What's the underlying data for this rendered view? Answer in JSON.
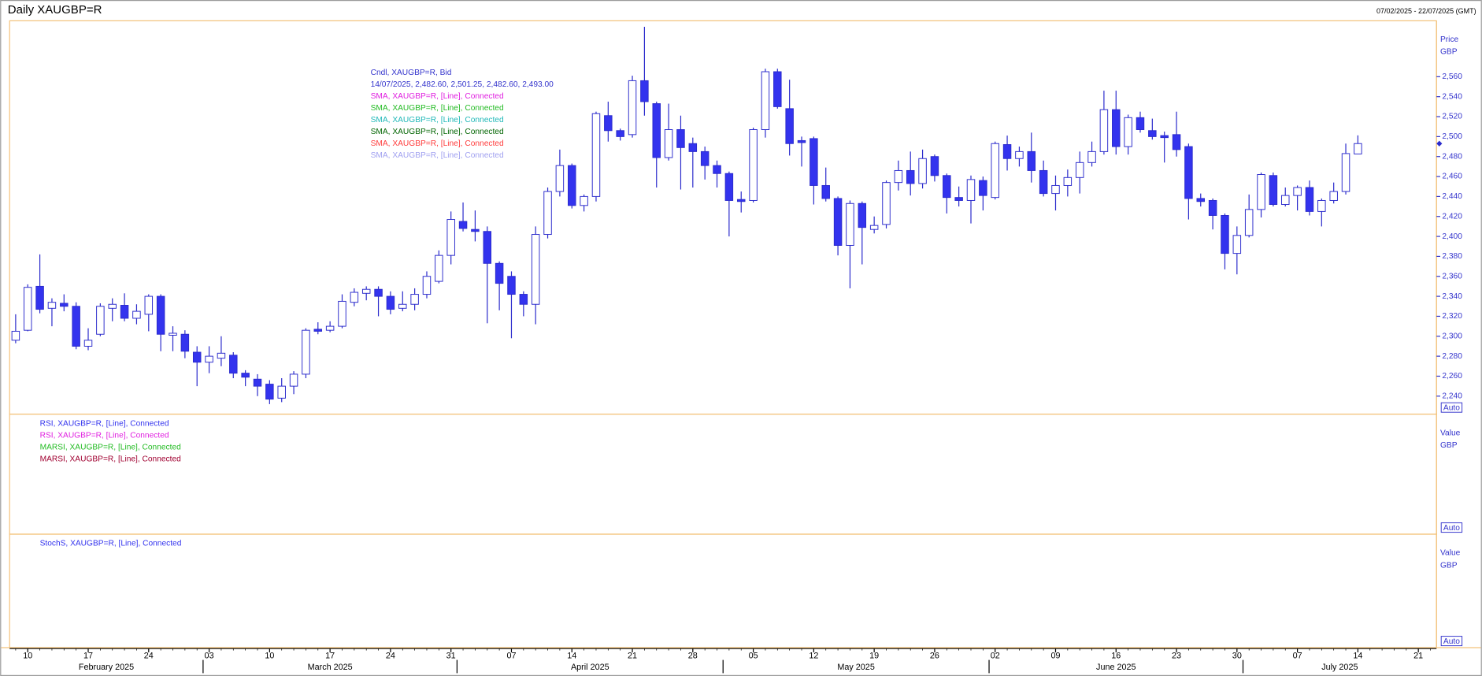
{
  "header": {
    "title": "Daily XAUGBP=R",
    "range": "07/02/2025 - 22/07/2025 (GMT)"
  },
  "chart_data": {
    "type": "candlestick",
    "categories": [
      null,
      "10",
      null,
      null,
      null,
      null,
      "17",
      null,
      null,
      null,
      null,
      "24",
      null,
      null,
      null,
      null,
      "03",
      null,
      null,
      null,
      null,
      "10",
      null,
      null,
      null,
      null,
      "17",
      null,
      null,
      null,
      null,
      "24",
      null,
      null,
      null,
      null,
      "31",
      null,
      null,
      null,
      null,
      "07",
      null,
      null,
      null,
      null,
      "14",
      null,
      null,
      null,
      null,
      "21",
      null,
      null,
      null,
      null,
      "28",
      null,
      null,
      null,
      null,
      "05",
      null,
      null,
      null,
      null,
      "12",
      null,
      null,
      null,
      null,
      "19",
      null,
      null,
      null,
      null,
      "26",
      null,
      null,
      null,
      null,
      "02",
      null,
      null,
      null,
      null,
      "09",
      null,
      null,
      null,
      null,
      "16",
      null,
      null,
      null,
      null,
      "23",
      null,
      null,
      null,
      null,
      "30",
      null,
      null,
      null,
      null,
      "07",
      null,
      null,
      null,
      null,
      "14",
      null,
      null,
      null,
      null,
      "21",
      null
    ],
    "open": [
      2296,
      2306,
      2350,
      2328,
      2333,
      2330,
      2290,
      2302,
      2328,
      2331,
      2318,
      2322,
      2340,
      2301,
      2302,
      2284,
      2274,
      2278,
      2281,
      2263,
      2257,
      2252,
      2238,
      2250,
      2262,
      2307,
      2306,
      2310,
      2334,
      2343,
      2347,
      2340,
      2328,
      2332,
      2342,
      2355,
      2381,
      2415,
      2407,
      2405,
      2373,
      2360,
      2342,
      2332,
      2402,
      2445,
      2471,
      2431,
      2440,
      2521,
      2506,
      2502,
      2556,
      2533,
      2479,
      2507,
      2493,
      2485,
      2471,
      2463,
      2437,
      2436,
      2507,
      2565,
      2528,
      2496,
      2498,
      2451,
      2438,
      2391,
      2433,
      2407,
      2412,
      2454,
      2466,
      2453,
      2480,
      2461,
      2439,
      2436,
      2456,
      2439,
      2492,
      2478,
      2485,
      2466,
      2443,
      2451,
      2459,
      2474,
      2485,
      2527,
      2490,
      2519,
      2506,
      2501,
      2502,
      2490,
      2438,
      2436,
      2421,
      2383,
      2401,
      2427,
      2461,
      2432,
      2441,
      2449,
      2425,
      2436,
      2445,
      2482.6,
      null,
      null,
      null,
      null,
      null,
      null
    ],
    "high": [
      2322,
      2352,
      2382,
      2338,
      2342,
      2334,
      2308,
      2333,
      2338,
      2343,
      2332,
      2342,
      2342,
      2310,
      2306,
      2290,
      2290,
      2300,
      2284,
      2266,
      2262,
      2256,
      2258,
      2265,
      2308,
      2314,
      2315,
      2342,
      2348,
      2350,
      2350,
      2345,
      2345,
      2348,
      2365,
      2386,
      2425,
      2434,
      2426,
      2410,
      2375,
      2365,
      2345,
      2410,
      2449,
      2487,
      2473,
      2442,
      2525,
      2535,
      2508,
      2561,
      2610,
      2535,
      2533,
      2521,
      2499,
      2490,
      2476,
      2465,
      2445,
      2509,
      2568,
      2568,
      2557,
      2500,
      2500,
      2469,
      2440,
      2436,
      2435,
      2420,
      2456,
      2476,
      2485,
      2487,
      2482,
      2463,
      2450,
      2461,
      2460,
      2495,
      2501,
      2490,
      2504,
      2476,
      2461,
      2467,
      2485,
      2495,
      2546,
      2546,
      2522,
      2525,
      2518,
      2505,
      2525,
      2493,
      2443,
      2438,
      2423,
      2410,
      2442,
      2464,
      2464,
      2449,
      2451,
      2456,
      2438,
      2454,
      2493,
      2501.25,
      null,
      null,
      null,
      null,
      null,
      null
    ],
    "low": [
      2293,
      2305,
      2323,
      2310,
      2325,
      2287,
      2286,
      2300,
      2315,
      2315,
      2312,
      2305,
      2285,
      2285,
      2278,
      2250,
      2263,
      2270,
      2258,
      2250,
      2240,
      2232,
      2234,
      2242,
      2258,
      2302,
      2304,
      2308,
      2330,
      2336,
      2320,
      2322,
      2325,
      2326,
      2338,
      2353,
      2372,
      2405,
      2395,
      2313,
      2326,
      2298,
      2320,
      2312,
      2398,
      2440,
      2428,
      2425,
      2435,
      2495,
      2496,
      2499,
      2521,
      2449,
      2476,
      2447,
      2449,
      2457,
      2449,
      2400,
      2424,
      2434,
      2499,
      2528,
      2481,
      2470,
      2432,
      2435,
      2381,
      2348,
      2372,
      2403,
      2408,
      2446,
      2441,
      2448,
      2455,
      2423,
      2430,
      2413,
      2426,
      2437,
      2466,
      2470,
      2454,
      2440,
      2426,
      2440,
      2443,
      2470,
      2482,
      2482,
      2482,
      2504,
      2497,
      2474,
      2480,
      2417,
      2430,
      2407,
      2367,
      2362,
      2399,
      2419,
      2430,
      2430,
      2426,
      2421,
      2410,
      2433,
      2442,
      2482.6,
      null,
      null,
      null,
      null,
      null,
      null
    ],
    "close": [
      2305,
      2349,
      2327,
      2334,
      2330,
      2290,
      2296,
      2330,
      2332,
      2318,
      2325,
      2340,
      2302,
      2303,
      2285,
      2274,
      2280,
      2283,
      2263,
      2259,
      2250,
      2237,
      2250,
      2262,
      2306,
      2305,
      2310,
      2335,
      2344,
      2347,
      2340,
      2327,
      2332,
      2342,
      2360,
      2381,
      2417,
      2408,
      2405,
      2373,
      2353,
      2342,
      2332,
      2402,
      2445,
      2471,
      2431,
      2440,
      2523,
      2506,
      2500,
      2556,
      2535,
      2479,
      2507,
      2489,
      2485,
      2471,
      2463,
      2436,
      2435,
      2507,
      2565,
      2530,
      2493,
      2494,
      2451,
      2438,
      2391,
      2433,
      2409,
      2411,
      2454,
      2466,
      2453,
      2478,
      2461,
      2439,
      2436,
      2457,
      2441,
      2493,
      2478,
      2485,
      2466,
      2443,
      2451,
      2459,
      2474,
      2485,
      2527,
      2490,
      2519,
      2507,
      2500,
      2499,
      2487,
      2438,
      2435,
      2421,
      2383,
      2401,
      2427,
      2462,
      2432,
      2441,
      2449,
      2425,
      2436,
      2445,
      2483,
      2493,
      null,
      null,
      null,
      null,
      null,
      null
    ],
    "up_color": "#ffffff",
    "down_color": "#3333ee",
    "edge_color": "#2b2bcc",
    "ylim": [
      2222,
      2616
    ],
    "yticks": [
      {
        "value": 2240,
        "label": "2,240"
      },
      {
        "value": 2260,
        "label": "2,260"
      },
      {
        "value": 2280,
        "label": "2,280"
      },
      {
        "value": 2300,
        "label": "2,300"
      },
      {
        "value": 2320,
        "label": "2,320"
      },
      {
        "value": 2340,
        "label": "2,340"
      },
      {
        "value": 2360,
        "label": "2,360"
      },
      {
        "value": 2380,
        "label": "2,380"
      },
      {
        "value": 2400,
        "label": "2,400"
      },
      {
        "value": 2420,
        "label": "2,420"
      },
      {
        "value": 2440,
        "label": "2,440"
      },
      {
        "value": 2460,
        "label": "2,460"
      },
      {
        "value": 2480,
        "label": "2,480"
      },
      {
        "value": 2500,
        "label": "2,500"
      },
      {
        "value": 2520,
        "label": "2,520"
      },
      {
        "value": 2540,
        "label": "2,540"
      },
      {
        "value": 2560,
        "label": "2,560"
      }
    ],
    "y_label": "Price",
    "y_unit": "GBP",
    "scale_mode": "Auto",
    "months": [
      {
        "label": "February 2025",
        "start": 0
      },
      {
        "label": "March 2025",
        "start": 16
      },
      {
        "label": "April 2025",
        "start": 37
      },
      {
        "label": "May 2025",
        "start": 59
      },
      {
        "label": "June 2025",
        "start": 81
      },
      {
        "label": "July 2025",
        "start": 102
      }
    ],
    "legend": [
      {
        "text": "Cndl, XAUGBP=R, Bid",
        "color": "#3333cc"
      },
      {
        "text": "14/07/2025, 2,482.60, 2,501.25, 2,482.60, 2,493.00",
        "color": "#3333cc"
      },
      {
        "text": "SMA, XAUGBP=R, [Line],  Connected",
        "color": "#e020e0"
      },
      {
        "text": "SMA, XAUGBP=R, [Line],  Connected",
        "color": "#22bb22"
      },
      {
        "text": "SMA, XAUGBP=R, [Line],  Connected",
        "color": "#20b8b8"
      },
      {
        "text": "SMA, XAUGBP=R, [Line],  Connected",
        "color": "#006400"
      },
      {
        "text": "SMA, XAUGBP=R, [Line],  Connected",
        "color": "#ff3c3c"
      },
      {
        "text": "SMA, XAUGBP=R, [Line],  Connected",
        "color": "#a0a0f0"
      }
    ]
  },
  "panels": [
    {
      "label": "Value",
      "unit": "GBP",
      "scale_mode": "Auto",
      "legend": [
        {
          "text": "RSI, XAUGBP=R, [Line],  Connected",
          "color": "#3333ee"
        },
        {
          "text": "RSI, XAUGBP=R, [Line],  Connected",
          "color": "#e020e0"
        },
        {
          "text": "MARSI, XAUGBP=R, [Line],  Connected",
          "color": "#22bb22"
        },
        {
          "text": "MARSI, XAUGBP=R, [Line],  Connected",
          "color": "#a00030"
        }
      ]
    },
    {
      "label": "Value",
      "unit": "GBP",
      "scale_mode": "Auto",
      "legend": [
        {
          "text": "StochS, XAUGBP=R, [Line],  Connected",
          "color": "#3333ee"
        }
      ]
    }
  ]
}
